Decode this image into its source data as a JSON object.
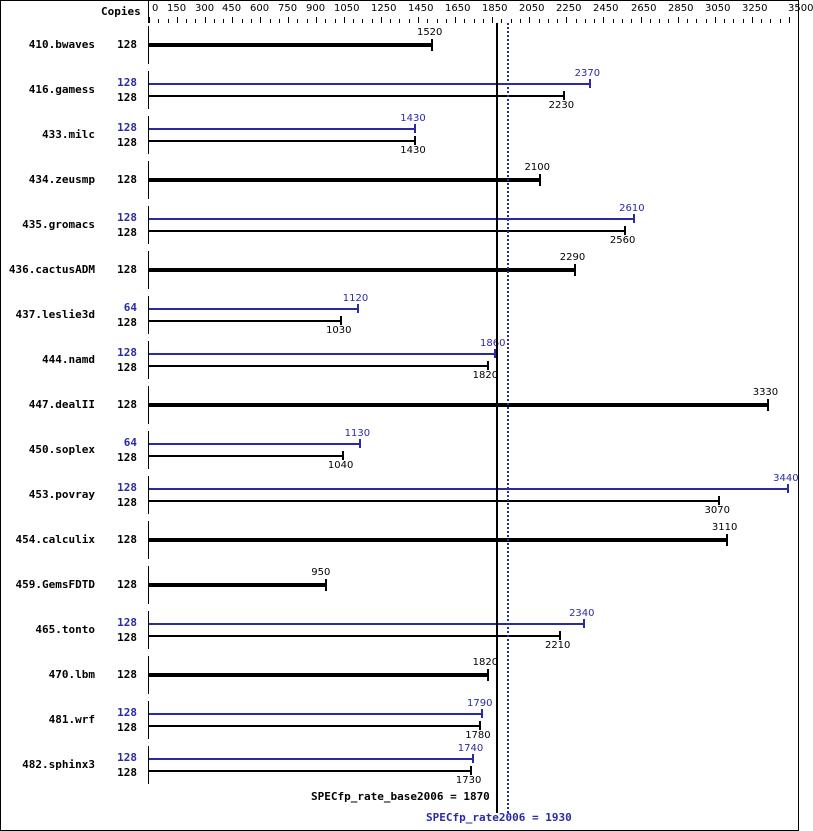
{
  "header": {
    "copies_label": "Copies"
  },
  "colors": {
    "base": "#000000",
    "peak": "#2a2aa5"
  },
  "chart_data": {
    "type": "bar",
    "orientation": "horizontal",
    "title": "",
    "xlabel": "",
    "ylabel": "",
    "xlim": [
      0,
      3500
    ],
    "x_ticks": [
      0,
      150,
      300,
      450,
      600,
      750,
      900,
      1050,
      1250,
      1450,
      1650,
      1850,
      2050,
      2250,
      2450,
      2650,
      2850,
      3050,
      3250,
      3500
    ],
    "categories": [
      "410.bwaves",
      "416.gamess",
      "433.milc",
      "434.zeusmp",
      "435.gromacs",
      "436.cactusADM",
      "437.leslie3d",
      "444.namd",
      "447.dealII",
      "450.soplex",
      "453.povray",
      "454.calculix",
      "459.GemsFDTD",
      "465.tonto",
      "470.lbm",
      "481.wrf",
      "482.sphinx3"
    ],
    "series": [
      {
        "name": "SPECfp_rate2006 (peak)",
        "color": "#2a2aa5",
        "copies": [
          null,
          128,
          128,
          null,
          128,
          null,
          64,
          128,
          null,
          64,
          128,
          null,
          null,
          128,
          null,
          128,
          128
        ],
        "values": [
          null,
          2370,
          1430,
          null,
          2610,
          null,
          1120,
          1860,
          null,
          1130,
          3440,
          null,
          null,
          2340,
          null,
          1790,
          1740
        ]
      },
      {
        "name": "SPECfp_rate_base2006 (base)",
        "color": "#000000",
        "copies": [
          128,
          128,
          128,
          128,
          128,
          128,
          128,
          128,
          128,
          128,
          128,
          128,
          128,
          128,
          128,
          128,
          128
        ],
        "values": [
          1520,
          2230,
          1430,
          2100,
          2560,
          2290,
          1030,
          1820,
          3330,
          1040,
          3070,
          3110,
          950,
          2210,
          1820,
          1780,
          1730
        ]
      }
    ],
    "reference_lines": [
      {
        "label": "SPECfp_rate_base2006 = 1870",
        "value": 1870,
        "style": "solid",
        "color": "#000000"
      },
      {
        "label": "SPECfp_rate2006 = 1930",
        "value": 1930,
        "style": "dotted",
        "color": "#2a2aa5"
      }
    ],
    "legend": "none",
    "grid": false
  }
}
